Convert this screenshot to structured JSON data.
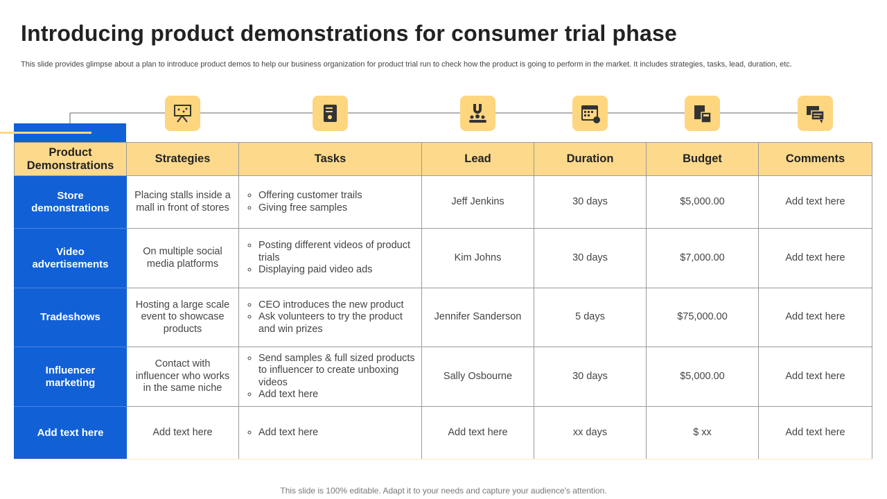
{
  "header": {
    "title": "Introducing product demonstrations for consumer trial phase",
    "subtitle": "This slide provides glimpse about a plan to introduce product demos to help our business organization for product trial run to check how the product is going to perform in the market. It includes strategies, tasks, lead, duration, etc."
  },
  "table": {
    "columns": [
      "Product Demonstrations",
      "Strategies",
      "Tasks",
      "Lead",
      "Duration",
      "Budget",
      "Comments"
    ],
    "rows": [
      {
        "name": "Store demonstrations",
        "strategy": "Placing stalls inside a mall in front of stores",
        "tasks": [
          "Offering customer trails",
          "Giving free samples"
        ],
        "lead": "Jeff Jenkins",
        "duration": "30 days",
        "budget": "$5,000.00",
        "comments": "Add text here"
      },
      {
        "name": "Video advertisements",
        "strategy": "On multiple social media platforms",
        "tasks": [
          "Posting different videos of product trials",
          "Displaying paid video ads"
        ],
        "lead": "Kim Johns",
        "duration": "30 days",
        "budget": "$7,000.00",
        "comments": "Add text here"
      },
      {
        "name": "Tradeshows",
        "strategy": "Hosting a large scale event to showcase products",
        "tasks": [
          "CEO introduces the new product",
          "Ask volunteers to try the product and win prizes"
        ],
        "lead": "Jennifer Sanderson",
        "duration": "5 days",
        "budget": "$75,000.00",
        "comments": "Add text here"
      },
      {
        "name": "Influencer marketing",
        "strategy": "Contact with influencer who works in the same niche",
        "tasks": [
          "Send samples & full sized products to influencer to create unboxing videos",
          "Add text here"
        ],
        "lead": "Sally Osbourne",
        "duration": "30 days",
        "budget": "$5,000.00",
        "comments": "Add text here"
      },
      {
        "name": "Add text here",
        "strategy": "Add text here",
        "tasks": [
          "Add text here"
        ],
        "lead": "Add text here",
        "duration": "xx days",
        "budget": "$ xx",
        "comments": "Add text here"
      }
    ]
  },
  "footer": "This slide is 100% editable. Adapt it to your needs and capture your audience's attention."
}
